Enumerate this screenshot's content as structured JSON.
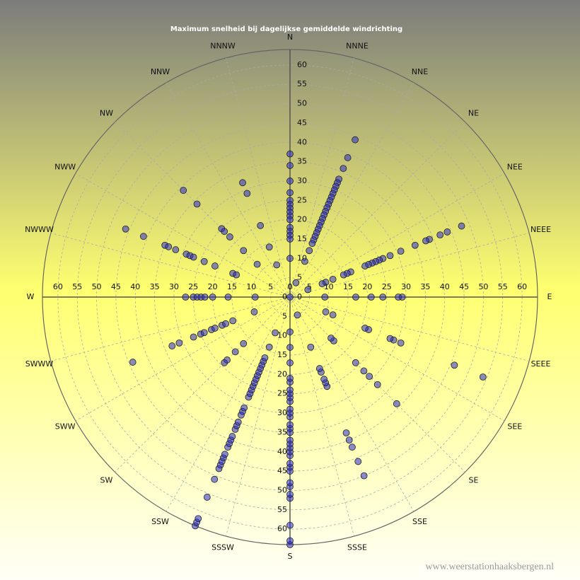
{
  "chart_data": {
    "type": "polar-scatter",
    "title": "Maximum  snelheid  bij  dagelijkse  gemiddelde  windrichting",
    "watermark": "www.weerstationhaaksbergen.nl",
    "angular_labels": [
      "N",
      "NNNE",
      "NNE",
      "NE",
      "NEE",
      "NEEE",
      "E",
      "SEEE",
      "SEE",
      "SE",
      "SSE",
      "SSSE",
      "S",
      "SSSW",
      "SSW",
      "SW",
      "SWW",
      "SWWW",
      "W",
      "NWWW",
      "NWW",
      "NW",
      "NNW",
      "NNNW"
    ],
    "rlim": [
      0,
      64
    ],
    "rticks": [
      0,
      5,
      10,
      15,
      20,
      25,
      30,
      35,
      40,
      45,
      50,
      55,
      60
    ],
    "grid": true,
    "color": "#2a2ad0",
    "series": [
      {
        "theta": 0,
        "values": [
          37,
          34,
          30,
          27,
          25,
          24,
          23,
          22,
          21,
          20,
          18,
          17,
          16,
          15,
          10,
          0
        ]
      },
      {
        "theta": 22.5,
        "values": [
          44,
          39,
          36,
          33,
          32,
          31,
          30,
          29,
          28,
          27,
          26,
          25,
          24,
          23,
          22,
          21,
          20,
          19,
          18,
          17,
          16,
          15,
          13,
          10,
          4
        ]
      },
      {
        "theta": 67.5,
        "values": [
          48,
          44,
          42,
          39,
          38,
          35,
          31,
          28,
          26,
          25,
          24,
          23,
          22,
          21,
          17,
          16,
          15,
          12,
          10,
          9,
          5
        ]
      },
      {
        "theta": 90,
        "values": [
          29,
          28,
          24,
          21,
          17,
          9
        ]
      },
      {
        "theta": 112.5,
        "values": [
          54,
          46,
          31,
          29,
          28,
          22,
          21,
          12,
          10
        ]
      },
      {
        "theta": 135,
        "values": [
          39,
          32,
          29,
          27,
          24,
          16,
          15
        ]
      },
      {
        "theta": 157.5,
        "values": [
          50,
          46,
          42,
          40,
          38,
          25,
          24,
          23,
          21,
          20,
          14,
          5
        ]
      },
      {
        "theta": 180,
        "values": [
          64,
          63,
          59,
          52,
          51,
          49,
          48,
          45,
          44,
          43,
          41,
          40,
          39,
          38,
          37,
          35,
          34,
          33,
          31,
          30,
          29,
          27,
          26,
          25,
          24,
          22,
          21,
          17,
          13,
          9
        ]
      },
      {
        "theta": 202.5,
        "values": [
          64,
          63,
          62,
          56,
          51,
          48,
          47,
          46,
          45,
          44,
          42,
          41,
          40,
          39,
          37,
          36,
          35,
          33,
          32,
          31,
          28,
          27,
          26,
          25,
          24,
          23,
          22,
          21,
          20,
          19,
          18,
          17,
          14,
          10
        ]
      },
      {
        "theta": 225,
        "values": [
          24,
          23,
          20,
          17
        ]
      },
      {
        "theta": 247.5,
        "values": [
          44,
          33,
          31,
          27,
          25,
          24,
          22,
          21,
          19,
          18,
          16,
          10
        ]
      },
      {
        "theta": 270,
        "values": [
          27,
          25,
          24,
          23,
          22,
          20,
          16,
          9
        ]
      },
      {
        "theta": 292.5,
        "values": [
          46,
          41,
          35,
          34,
          32,
          29,
          28,
          27,
          24,
          21,
          16,
          15
        ]
      },
      {
        "theta": 315,
        "values": [
          39,
          34,
          25,
          24,
          22,
          17,
          12
        ]
      },
      {
        "theta": 337.5,
        "values": [
          32,
          29,
          20,
          14,
          9
        ]
      }
    ]
  }
}
